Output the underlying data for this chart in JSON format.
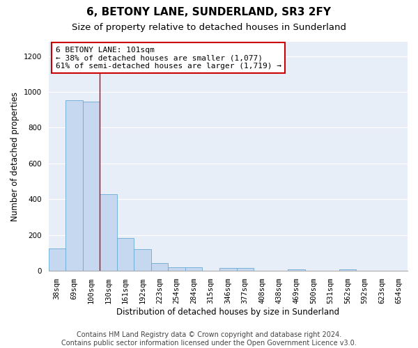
{
  "title": "6, BETONY LANE, SUNDERLAND, SR3 2FY",
  "subtitle": "Size of property relative to detached houses in Sunderland",
  "xlabel": "Distribution of detached houses by size in Sunderland",
  "ylabel": "Number of detached properties",
  "footer_line1": "Contains HM Land Registry data © Crown copyright and database right 2024.",
  "footer_line2": "Contains public sector information licensed under the Open Government Licence v3.0.",
  "categories": [
    "38sqm",
    "69sqm",
    "100sqm",
    "130sqm",
    "161sqm",
    "192sqm",
    "223sqm",
    "254sqm",
    "284sqm",
    "315sqm",
    "346sqm",
    "377sqm",
    "408sqm",
    "438sqm",
    "469sqm",
    "500sqm",
    "531sqm",
    "562sqm",
    "592sqm",
    "623sqm",
    "654sqm"
  ],
  "values": [
    125,
    955,
    945,
    428,
    183,
    120,
    42,
    20,
    20,
    0,
    15,
    15,
    0,
    0,
    8,
    0,
    0,
    8,
    0,
    0,
    0
  ],
  "bar_color": "#c5d8f0",
  "bar_edge_color": "#6aaad4",
  "property_line_x": 2.5,
  "property_line_color": "#cc0000",
  "annotation_line1": "6 BETONY LANE: 101sqm",
  "annotation_line2": "← 38% of detached houses are smaller (1,077)",
  "annotation_line3": "61% of semi-detached houses are larger (1,719) →",
  "annotation_box_color": "#cc0000",
  "annotation_bg_color": "#ffffff",
  "ylim": [
    0,
    1280
  ],
  "yticks": [
    0,
    200,
    400,
    600,
    800,
    1000,
    1200
  ],
  "fig_bg_color": "#ffffff",
  "plot_bg_color": "#e8eef8",
  "grid_color": "#ffffff",
  "title_fontsize": 11,
  "subtitle_fontsize": 9.5,
  "axis_label_fontsize": 8.5,
  "tick_fontsize": 7.5,
  "annotation_fontsize": 8,
  "footer_fontsize": 7
}
